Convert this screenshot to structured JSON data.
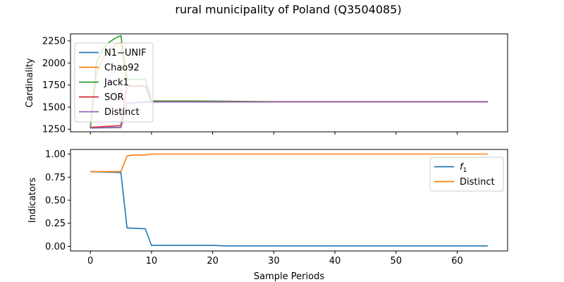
{
  "figure": {
    "title": "rural municipality of Poland (Q3504085)"
  },
  "chart_data": [
    {
      "type": "line",
      "title": "",
      "xlabel": "",
      "ylabel": "Cardinality",
      "xlim": [
        -3.25,
        68.25
      ],
      "ylim": [
        1220,
        2330
      ],
      "xticks": [
        0,
        10,
        20,
        30,
        40,
        50,
        60
      ],
      "xtick_labels": [
        "",
        "",
        "",
        "",
        "",
        "",
        ""
      ],
      "yticks": [
        1250,
        1500,
        1750,
        2000,
        2250
      ],
      "ytick_labels": [
        "1250",
        "1500",
        "1750",
        "2000",
        "2250"
      ],
      "grid": false,
      "legend": "upper left",
      "series": [
        {
          "name": "N1−UNIF",
          "color": "#1f77b4",
          "x": [
            0,
            5,
            6,
            10,
            20,
            30,
            40,
            50,
            60,
            65
          ],
          "y": [
            1265,
            1270,
            1545,
            1565,
            1562,
            1560,
            1560,
            1560,
            1560,
            1560
          ]
        },
        {
          "name": "Chao92",
          "color": "#ff7f0e",
          "x": [
            0,
            1,
            2,
            3,
            4,
            5,
            6,
            7,
            8,
            9,
            10,
            15,
            20,
            30,
            40,
            50,
            60,
            65
          ],
          "y": [
            1265,
            1880,
            2040,
            2140,
            2200,
            2230,
            1750,
            1740,
            1740,
            1735,
            1565,
            1563,
            1562,
            1560,
            1560,
            1560,
            1560,
            1560
          ]
        },
        {
          "name": "Jack1",
          "color": "#2ca02c",
          "x": [
            0,
            1,
            2,
            3,
            4,
            5,
            6,
            7,
            8,
            9,
            10,
            15,
            20,
            30,
            40,
            50,
            60,
            65
          ],
          "y": [
            1265,
            2010,
            2150,
            2230,
            2280,
            2310,
            1810,
            1815,
            1815,
            1815,
            1570,
            1570,
            1568,
            1562,
            1562,
            1562,
            1562,
            1562
          ]
        },
        {
          "name": "SOR",
          "color": "#d62728",
          "x": [
            0,
            5,
            6,
            7,
            8,
            9,
            10,
            20,
            30,
            40,
            50,
            60,
            65
          ],
          "y": [
            1270,
            1290,
            1740,
            1740,
            1740,
            1740,
            1560,
            1560,
            1560,
            1560,
            1560,
            1560,
            1560
          ]
        },
        {
          "name": "Distinct",
          "color": "#9467bd",
          "x": [
            0,
            5,
            6,
            10,
            20,
            30,
            40,
            50,
            60,
            65
          ],
          "y": [
            1262,
            1268,
            1545,
            1558,
            1558,
            1558,
            1558,
            1558,
            1558,
            1558
          ]
        }
      ]
    },
    {
      "type": "line",
      "title": "",
      "xlabel": "Sample Periods",
      "ylabel": "Indicators",
      "xlim": [
        -3.25,
        68.25
      ],
      "ylim": [
        -0.05,
        1.05
      ],
      "xticks": [
        0,
        10,
        20,
        30,
        40,
        50,
        60
      ],
      "xtick_labels": [
        "0",
        "10",
        "20",
        "30",
        "40",
        "50",
        "60"
      ],
      "yticks": [
        0.0,
        0.25,
        0.5,
        0.75,
        1.0
      ],
      "ytick_labels": [
        "0.00",
        "0.25",
        "0.50",
        "0.75",
        "1.00"
      ],
      "grid": false,
      "legend": "upper right",
      "series": [
        {
          "name": "f1",
          "label_main": "f",
          "label_sub": "1",
          "color": "#1f77b4",
          "x": [
            0,
            5,
            6,
            9,
            10,
            20,
            22,
            30,
            40,
            50,
            60,
            65
          ],
          "y": [
            0.81,
            0.8,
            0.2,
            0.19,
            0.01,
            0.01,
            0.005,
            0.005,
            0.005,
            0.005,
            0.005,
            0.005
          ]
        },
        {
          "name": "Distinct",
          "color": "#ff7f0e",
          "x": [
            0,
            5,
            6,
            7,
            9,
            10,
            20,
            30,
            40,
            50,
            60,
            65
          ],
          "y": [
            0.81,
            0.81,
            0.98,
            0.99,
            0.99,
            1.0,
            1.0,
            1.0,
            1.0,
            1.0,
            1.0,
            1.0
          ]
        }
      ]
    }
  ]
}
